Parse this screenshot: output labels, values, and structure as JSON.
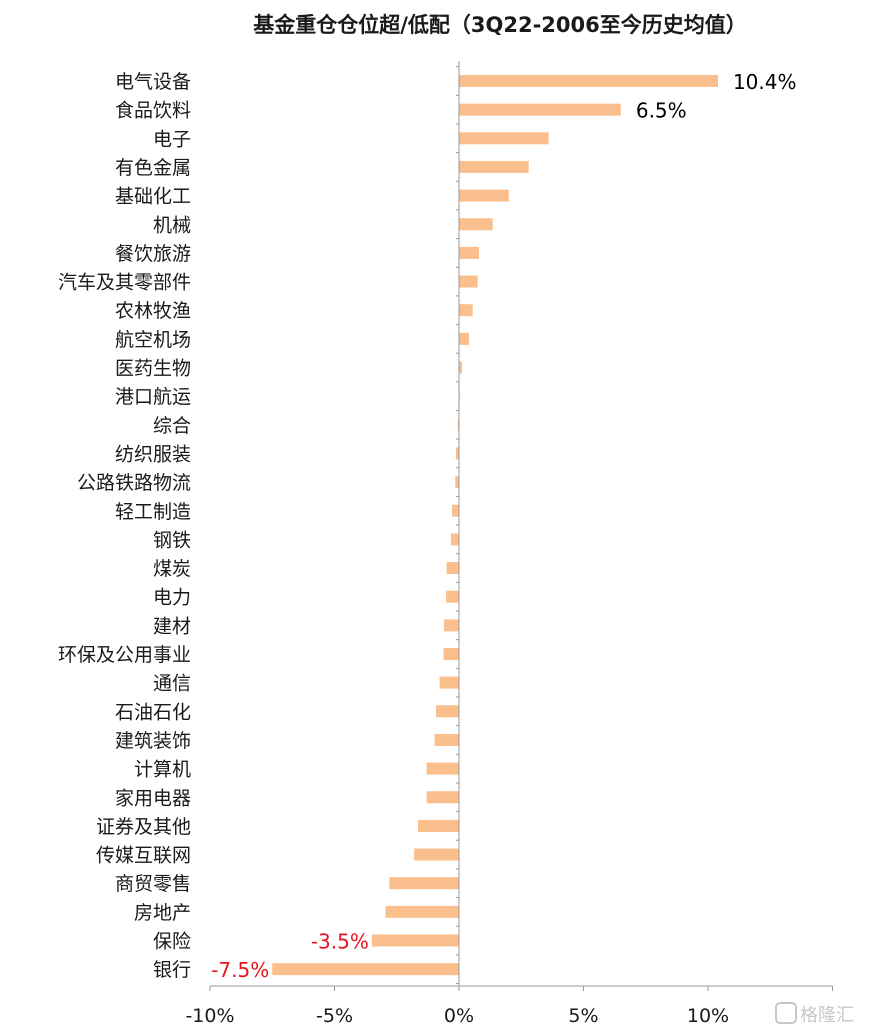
{
  "chart_data": {
    "type": "bar",
    "orientation": "horizontal",
    "title": "基金重仓仓位超/低配（3Q22-2006至今历史均值）",
    "categories": [
      "电气设备",
      "食品饮料",
      "电子",
      "有色金属",
      "基础化工",
      "机械",
      "餐饮旅游",
      "汽车及其零部件",
      "农林牧渔",
      "航空机场",
      "医药生物",
      "港口航运",
      "综合",
      "纺织服装",
      "公路铁路物流",
      "轻工制造",
      "钢铁",
      "煤炭",
      "电力",
      "建材",
      "环保及公用事业",
      "通信",
      "石油石化",
      "建筑装饰",
      "计算机",
      "家用电器",
      "证券及其他",
      "传媒互联网",
      "商贸零售",
      "房地产",
      "保险",
      "银行"
    ],
    "values": [
      10.4,
      6.5,
      3.6,
      2.8,
      2.0,
      1.35,
      0.8,
      0.75,
      0.55,
      0.4,
      0.12,
      0.03,
      -0.05,
      -0.12,
      -0.15,
      -0.28,
      -0.32,
      -0.5,
      -0.52,
      -0.6,
      -0.62,
      -0.78,
      -0.92,
      -0.98,
      -1.3,
      -1.3,
      -1.65,
      -1.8,
      -2.8,
      -2.95,
      -3.5,
      -7.5
    ],
    "data_labels": [
      {
        "category": "电气设备",
        "text": "10.4%",
        "color": "#000000"
      },
      {
        "category": "食品饮料",
        "text": "6.5%",
        "color": "#000000"
      },
      {
        "category": "保险",
        "text": "-3.5%",
        "color": "#e8141e"
      },
      {
        "category": "银行",
        "text": "-7.5%",
        "color": "#e8141e"
      }
    ],
    "xlim": [
      -10,
      15
    ],
    "xticks": [
      -10,
      -5,
      0,
      5,
      10
    ],
    "xtick_labels": [
      "-10%",
      "-5%",
      "0%",
      "5%",
      "10%"
    ],
    "bar_color": "#fbbf8e",
    "grid": false,
    "legend": "none"
  },
  "watermark": "格隆汇"
}
